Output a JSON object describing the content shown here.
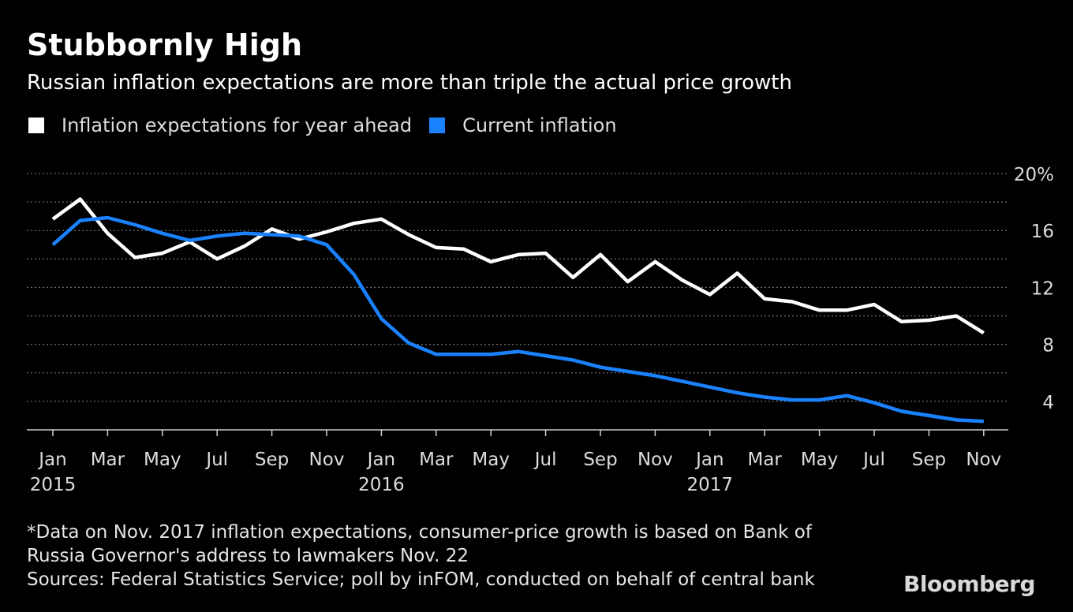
{
  "title": "Stubbornly High",
  "subtitle": "Russian inflation expectations are more than triple the actual price growth",
  "legend": [
    {
      "label": "Inflation expectations for year ahead",
      "color": "#ffffff"
    },
    {
      "label": "Current inflation",
      "color": "#1a82ff"
    }
  ],
  "chart_data": {
    "type": "line",
    "x_months": [
      "2015-01",
      "2015-02",
      "2015-03",
      "2015-04",
      "2015-05",
      "2015-06",
      "2015-07",
      "2015-08",
      "2015-09",
      "2015-10",
      "2015-11",
      "2015-12",
      "2016-01",
      "2016-02",
      "2016-03",
      "2016-04",
      "2016-05",
      "2016-06",
      "2016-07",
      "2016-08",
      "2016-09",
      "2016-10",
      "2016-11",
      "2016-12",
      "2017-01",
      "2017-02",
      "2017-03",
      "2017-04",
      "2017-05",
      "2017-06",
      "2017-07",
      "2017-08",
      "2017-09",
      "2017-10",
      "2017-11"
    ],
    "series": [
      {
        "name": "Inflation expectations for year ahead",
        "color": "#ffffff",
        "values": [
          16.8,
          18.2,
          15.8,
          14.1,
          14.4,
          15.2,
          14.0,
          14.9,
          16.1,
          15.4,
          15.9,
          16.5,
          16.8,
          15.7,
          14.8,
          14.7,
          13.8,
          14.3,
          14.4,
          12.7,
          14.3,
          12.4,
          13.8,
          12.5,
          11.5,
          13.0,
          11.2,
          11.0,
          10.4,
          10.4,
          10.8,
          9.6,
          9.7,
          10.0,
          8.8
        ]
      },
      {
        "name": "Current inflation",
        "color": "#1a82ff",
        "values": [
          15.0,
          16.7,
          16.9,
          16.4,
          15.8,
          15.3,
          15.6,
          15.8,
          15.7,
          15.6,
          15.0,
          12.9,
          9.8,
          8.1,
          7.3,
          7.3,
          7.3,
          7.5,
          7.2,
          6.9,
          6.4,
          6.1,
          5.8,
          5.4,
          5.0,
          4.6,
          4.3,
          4.1,
          4.1,
          4.4,
          3.9,
          3.3,
          3.0,
          2.7,
          2.6
        ]
      }
    ],
    "y_ticks": [
      4,
      8,
      12,
      16,
      20
    ],
    "y_tick_labels": [
      "4",
      "8",
      "12",
      "16",
      "20%"
    ],
    "ylim": [
      2,
      20
    ],
    "x_ticks": [
      {
        "month": "2015-01",
        "label": "Jan",
        "year": "2015"
      },
      {
        "month": "2015-03",
        "label": "Mar"
      },
      {
        "month": "2015-05",
        "label": "May"
      },
      {
        "month": "2015-07",
        "label": "Jul"
      },
      {
        "month": "2015-09",
        "label": "Sep"
      },
      {
        "month": "2015-11",
        "label": "Nov"
      },
      {
        "month": "2016-01",
        "label": "Jan",
        "year": "2016"
      },
      {
        "month": "2016-03",
        "label": "Mar"
      },
      {
        "month": "2016-05",
        "label": "May"
      },
      {
        "month": "2016-07",
        "label": "Jul"
      },
      {
        "month": "2016-09",
        "label": "Sep"
      },
      {
        "month": "2016-11",
        "label": "Nov"
      },
      {
        "month": "2017-01",
        "label": "Jan",
        "year": "2017"
      },
      {
        "month": "2017-03",
        "label": "Mar"
      },
      {
        "month": "2017-05",
        "label": "May"
      },
      {
        "month": "2017-07",
        "label": "Jul"
      },
      {
        "month": "2017-09",
        "label": "Sep"
      },
      {
        "month": "2017-11",
        "label": "Nov"
      }
    ],
    "grid": true,
    "legend_position": "top-left"
  },
  "footnote": [
    "*Data on Nov. 2017 inflation expectations, consumer-price growth is based on Bank of",
    "Russia Governor's address to lawmakers Nov. 22",
    "Sources: Federal Statistics Service; poll by inFOM, conducted on behalf of central bank"
  ],
  "brand": "Bloomberg"
}
